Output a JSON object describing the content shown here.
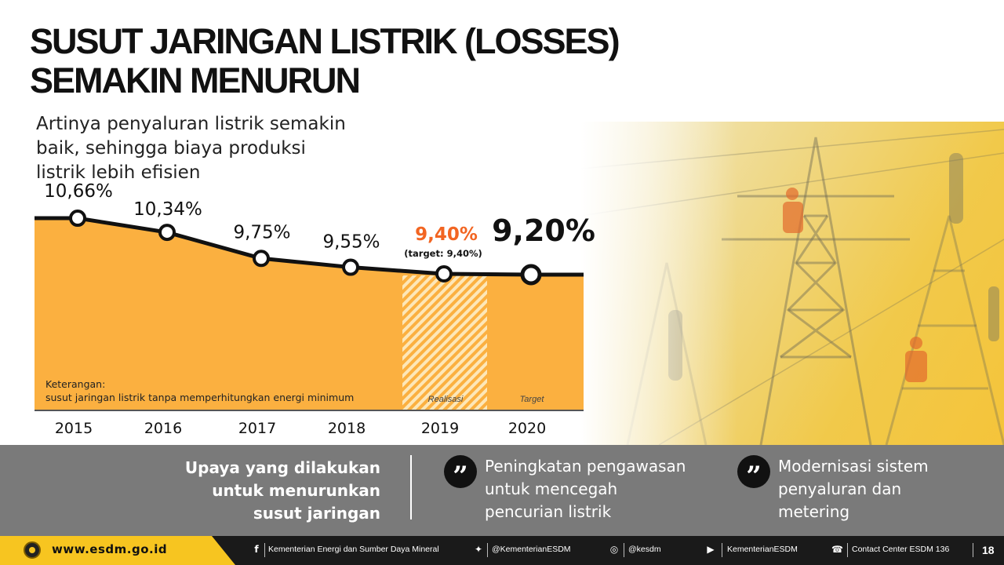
{
  "slide": {
    "title_line1": "SUSUT JARINGAN LISTRIK (LOSSES)",
    "title_line2": "SEMAKIN MENURUN",
    "subtitle_line1": "Artinya penyaluran listrik semakin",
    "subtitle_line2": "baik, sehingga biaya produksi",
    "subtitle_line3": "listrik lebih efisien"
  },
  "chart_data": {
    "type": "area",
    "x": [
      "2015",
      "2016",
      "2017",
      "2018",
      "2019",
      "2020"
    ],
    "values": [
      10.66,
      10.34,
      9.75,
      9.55,
      9.4,
      9.2
    ],
    "value_labels": [
      "10,66%",
      "10,34%",
      "9,75%",
      "9,55%",
      "9,40%",
      "9,20%"
    ],
    "annotation_2019": "(target: 9,40%)",
    "section_labels": [
      "Realisasi",
      "Target"
    ],
    "note_line1": "Keterangan:",
    "note_line2": "susut jaringan listrik  tanpa memperhitungkan energi minimum",
    "colors": {
      "area": "#fbb040",
      "highlight": "#f26522",
      "line": "#111111"
    }
  },
  "band": {
    "heading_line1": "Upaya yang dilakukan",
    "heading_line2": "untuk menurunkan",
    "heading_line3": "susut jaringan",
    "quote_glyph": "”",
    "item1_line1": "Peningkatan pengawasan",
    "item1_line2": "untuk mencegah",
    "item1_line3": "pencurian listrik",
    "item2_line1": "Modernisasi sistem",
    "item2_line2": "penyaluran dan",
    "item2_line3": "metering"
  },
  "footer": {
    "website": "www.esdm.go.id",
    "facebook_icon": "f",
    "facebook": "Kementerian Energi dan Sumber Daya Mineral",
    "twitter_icon": "✦",
    "twitter": "@KementerianESDM",
    "instagram_icon": "◎",
    "instagram": "@kesdm",
    "youtube_icon": "▶",
    "youtube": "KementerianESDM",
    "phone_icon": "☎",
    "contact": "Contact Center ESDM  136",
    "page_number": "18"
  }
}
